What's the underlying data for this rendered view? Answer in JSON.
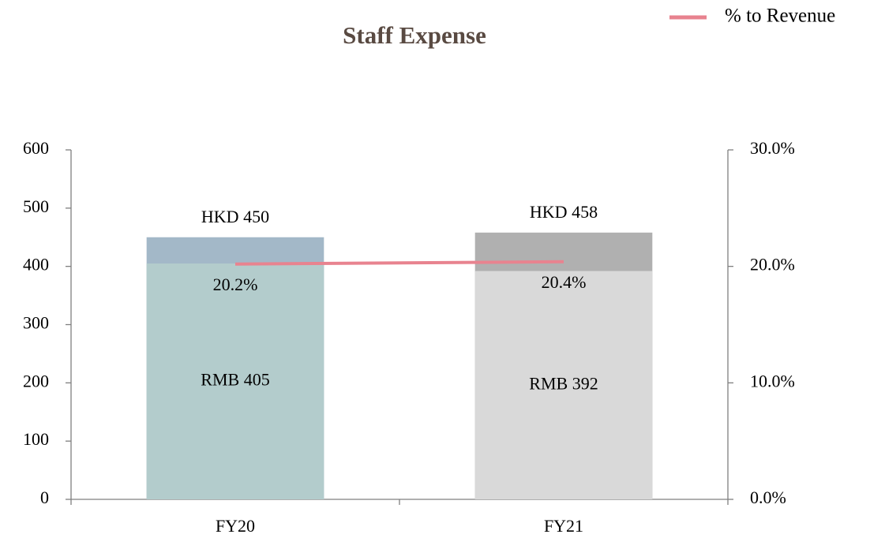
{
  "chart_data": {
    "type": "bar",
    "title": "Staff Expense",
    "categories": [
      "FY20",
      "FY21"
    ],
    "series": [
      {
        "values": [
          450,
          458
        ],
        "value_labels": [
          "HKD 450",
          "HKD 458"
        ],
        "color": [
          "#a3b8c8",
          "#b0b0b0"
        ]
      },
      {
        "values": [
          405,
          392
        ],
        "value_labels": [
          "RMB 405",
          "RMB 392"
        ],
        "color": [
          "#b3cccc",
          "#d9d9d9"
        ]
      },
      {
        "name": "% to Revenue",
        "type": "line",
        "axis": "y2",
        "color": "#e8838f",
        "values": [
          20.2,
          20.4
        ],
        "value_labels": [
          "20.2%",
          "20.4%"
        ]
      }
    ],
    "ylim": [
      0,
      600
    ],
    "yticks": [
      0,
      100,
      200,
      300,
      400,
      500,
      600
    ],
    "y2lim": [
      0,
      30
    ],
    "y2ticks": [
      {
        "value": 0,
        "label": "0.0%"
      },
      {
        "value": 10,
        "label": "10.0%"
      },
      {
        "value": 20,
        "label": "20.0%"
      },
      {
        "value": 30,
        "label": "30.0%"
      }
    ],
    "legend": "top-right",
    "grid": false
  }
}
